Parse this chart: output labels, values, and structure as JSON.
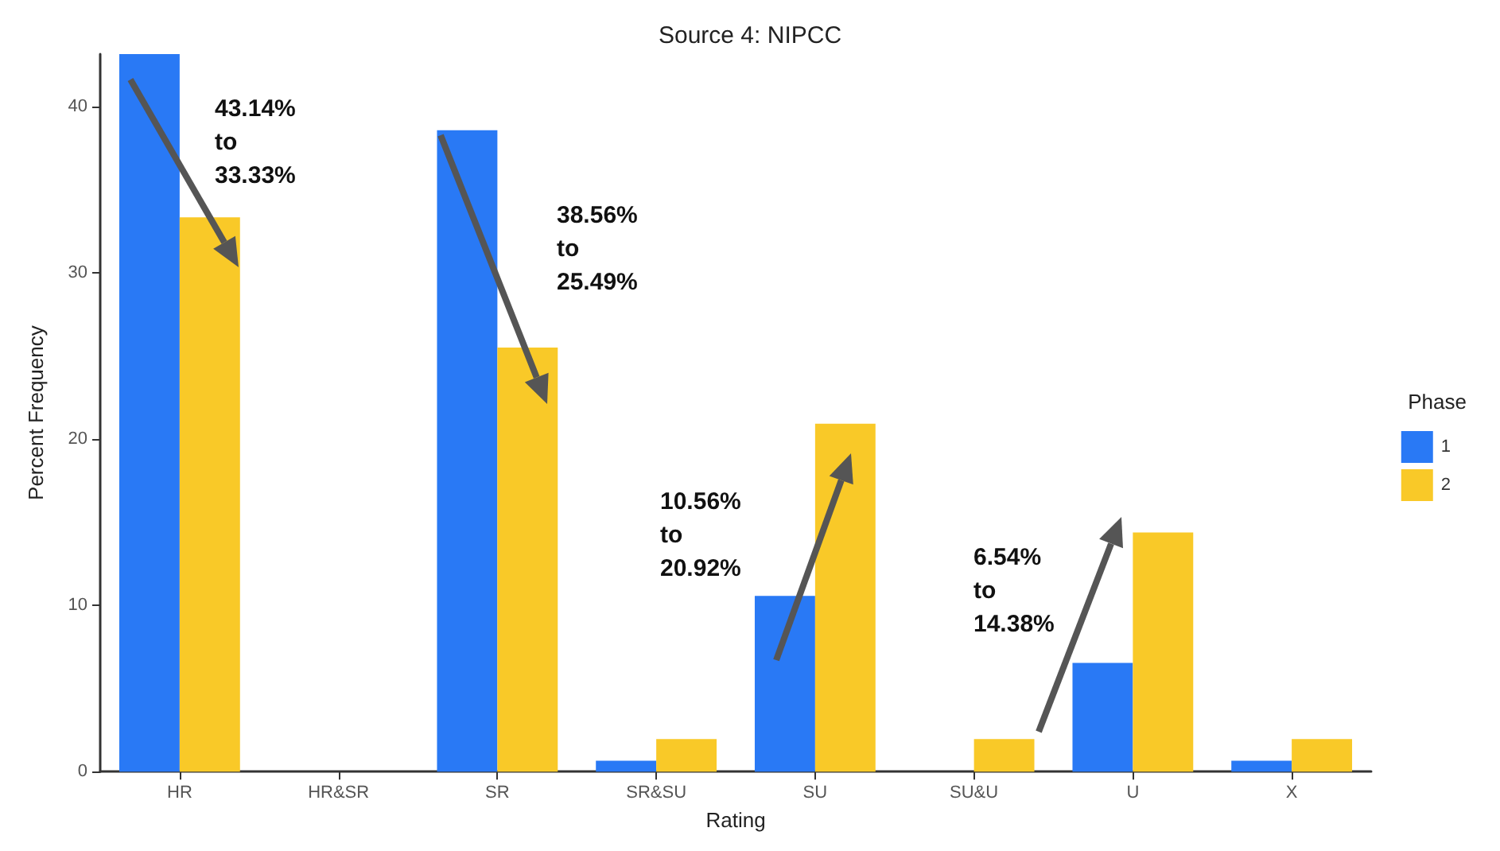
{
  "chart_data": {
    "type": "bar",
    "title": "Source 4: NIPCC",
    "xlabel": "Rating",
    "ylabel": "Percent Frequency",
    "legend_title": "Phase",
    "categories": [
      "HR",
      "HR&SR",
      "SR",
      "SR&SU",
      "SU",
      "SU&U",
      "U",
      "X"
    ],
    "series": [
      {
        "name": "1",
        "color": "#2979f5",
        "values": [
          43.14,
          0,
          38.56,
          0.65,
          10.56,
          0,
          6.54,
          0.65
        ]
      },
      {
        "name": "2",
        "color": "#f9c928",
        "values": [
          33.33,
          0,
          25.49,
          1.96,
          20.92,
          1.96,
          14.38,
          1.96
        ]
      }
    ],
    "ylim": [
      0,
      43.14
    ],
    "yticks": [
      0,
      10,
      20,
      30,
      40
    ],
    "grid": false,
    "legend": "right",
    "annotations": [
      "43.14%\nto\n33.33%",
      "38.56%\nto\n25.49%",
      "10.56%\nto\n20.92%",
      "6.54%\nto\n14.38%"
    ]
  }
}
